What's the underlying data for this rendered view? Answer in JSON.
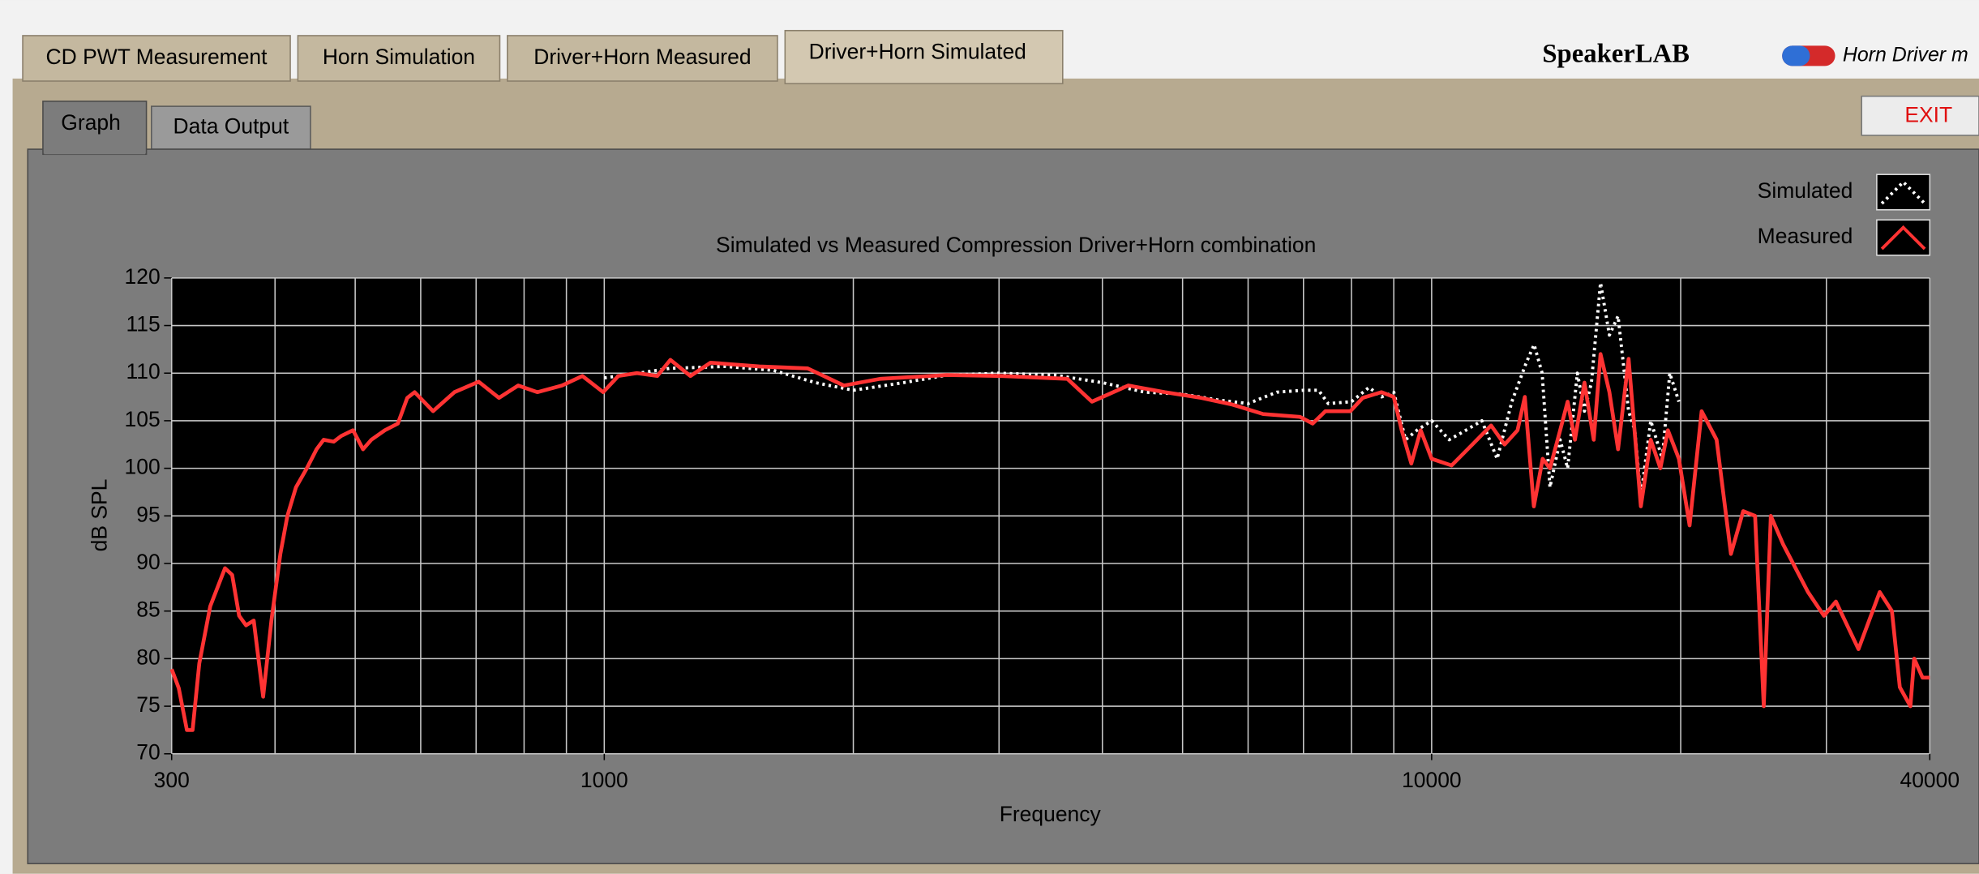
{
  "tabs": [
    "CD PWT Measurement",
    "Horn Simulation",
    "Driver+Horn Measured",
    "Driver+Horn Simulated"
  ],
  "logo": "SpeakerLAB",
  "header_link": "Horn Driver m",
  "subtabs": [
    "Graph",
    "Data Output"
  ],
  "exit_button": "EXIT",
  "chart_data": {
    "type": "line",
    "title": "Simulated vs Measured Compression Driver+Horn combination",
    "x_label": "Frequency",
    "y_label": "dB SPL",
    "xscale": "log",
    "xlim": [
      300,
      40000
    ],
    "xticks": [
      300,
      1000,
      10000,
      40000
    ],
    "xminor_ticks": [
      400,
      500,
      600,
      700,
      800,
      900,
      2000,
      3000,
      4000,
      5000,
      6000,
      7000,
      8000,
      9000,
      20000,
      30000
    ],
    "ylim": [
      70,
      120
    ],
    "yticks": [
      70,
      75,
      80,
      85,
      90,
      95,
      100,
      105,
      110,
      115,
      120
    ],
    "grid": true,
    "legend": "top-right",
    "series": [
      {
        "name": "Simulated",
        "color": "#ffffff",
        "style": "dotted",
        "x": [
          1000,
          1100,
          1200,
          1400,
          1600,
          1800,
          2000,
          2300,
          2600,
          3000,
          3500,
          4000,
          4500,
          5000,
          5500,
          6000,
          6500,
          7000,
          7300,
          7500,
          8000,
          8400,
          8700,
          9000,
          9300,
          9600,
          10000,
          10500,
          11000,
          11500,
          12000,
          12500,
          13000,
          13300,
          13600,
          13900,
          14300,
          14600,
          15000,
          15300,
          15600,
          16000,
          16400,
          16800,
          17300,
          17600,
          17900,
          18400,
          19000,
          19400,
          19900
        ],
        "values": [
          109.5,
          110,
          110.5,
          110.7,
          110.3,
          109,
          108.2,
          109,
          109.8,
          110,
          109.8,
          109,
          108,
          107.8,
          107.2,
          106.8,
          108,
          108.2,
          108.2,
          106.8,
          107,
          108.5,
          107.5,
          108,
          103,
          104,
          105,
          103,
          104,
          105,
          101,
          107,
          111,
          113,
          110,
          98,
          103,
          100,
          110,
          106,
          109,
          119.5,
          114,
          116,
          106,
          104,
          97,
          105,
          101,
          110,
          107
        ]
      },
      {
        "name": "Measured",
        "color": "#ff3333",
        "style": "solid",
        "x": [
          300,
          306,
          313,
          318,
          324,
          334,
          348,
          355,
          362,
          369,
          377,
          387,
          396,
          406,
          414,
          424,
          437,
          449,
          458,
          471,
          481,
          497,
          511,
          523,
          543,
          563,
          578,
          590,
          621,
          659,
          705,
          746,
          787,
          830,
          889,
          941,
          997,
          1040,
          1095,
          1159,
          1202,
          1271,
          1344,
          1540,
          1761,
          1948,
          2155,
          2593,
          3027,
          3628,
          3885,
          4298,
          4757,
          5264,
          5741,
          6257,
          6932,
          7181,
          7440,
          7975,
          8255,
          8695,
          9000,
          9200,
          9450,
          9700,
          10000,
          10570,
          11200,
          11800,
          12250,
          12700,
          12960,
          13290,
          13620,
          13900,
          14300,
          14600,
          14900,
          15300,
          15700,
          16000,
          16400,
          16800,
          17300,
          17900,
          18400,
          18900,
          19300,
          19900,
          20500,
          21200,
          22100,
          23000,
          23800,
          24600,
          25200,
          25700,
          26600,
          28500,
          29800,
          30800,
          32800,
          34800,
          36000,
          36800,
          37900,
          38300,
          39200,
          40000
        ],
        "values": [
          78.9,
          76.9,
          72.5,
          72.5,
          79.5,
          85.5,
          89.5,
          88.8,
          84.5,
          83.5,
          84,
          76,
          84,
          91,
          95,
          98,
          100,
          102,
          103,
          102.8,
          103.4,
          104,
          102,
          103,
          104,
          104.7,
          107.4,
          108,
          106,
          108,
          109.1,
          107.4,
          108.7,
          108,
          108.7,
          109.7,
          108,
          109.7,
          110,
          109.7,
          111.4,
          109.7,
          111.1,
          110.7,
          110.5,
          108.7,
          109.4,
          109.8,
          109.7,
          109.4,
          107,
          108.7,
          108,
          107.4,
          106.7,
          105.7,
          105.4,
          104.7,
          106,
          106,
          107.4,
          108,
          107.5,
          104,
          100.5,
          104,
          101,
          100.3,
          102.5,
          104.5,
          102.5,
          104,
          107.5,
          96,
          101,
          100,
          104,
          107,
          103,
          109,
          103,
          112,
          108,
          102,
          111.5,
          96,
          103,
          100,
          104,
          101,
          94,
          106,
          103,
          91,
          95.5,
          95,
          75,
          95,
          92,
          87,
          84.5,
          86,
          81,
          87,
          85,
          77,
          75,
          80,
          78,
          78
        ]
      }
    ]
  }
}
